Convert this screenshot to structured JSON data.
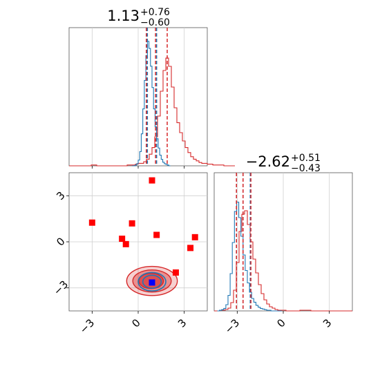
{
  "chart_data": {
    "type": "corner",
    "parameters": 2,
    "axis_limits": {
      "x1": [
        -4.5,
        4.5
      ],
      "x2": [
        -4.5,
        4.5
      ]
    },
    "ticks": {
      "values": [
        -3,
        0,
        3
      ],
      "labels": [
        "−3",
        "0",
        "3"
      ]
    },
    "grid": true,
    "series": [
      {
        "color": "#1f77b4",
        "role": "narrow posterior"
      },
      {
        "color": "#d62728",
        "role": "broad posterior"
      }
    ],
    "panels": [
      {
        "id": "hist-x1",
        "title": {
          "median": "1.13",
          "plus": "+0.76",
          "minus": "−0.60"
        },
        "quantile_lines": {
          "blue": [
            0.6,
            1.2
          ],
          "red": [
            0.53,
            1.13,
            1.89
          ]
        },
        "hist_blue": {
          "edges_start": -0.4,
          "bin_width": 0.1,
          "counts": [
            0,
            0,
            1,
            3,
            8,
            20,
            45,
            80,
            120,
            155,
            175,
            165,
            140,
            110,
            80,
            55,
            38,
            25,
            15,
            9,
            5,
            3,
            2,
            1,
            0
          ]
        },
        "hist_red": {
          "edges_start": -4.5,
          "bin_width": 0.18,
          "counts": [
            0,
            0,
            0,
            0,
            0,
            0,
            0,
            0,
            1,
            1,
            0,
            0,
            0,
            0,
            0,
            0,
            0,
            0,
            0,
            0,
            0,
            1,
            1,
            1,
            2,
            3,
            3,
            5,
            8,
            14,
            22,
            35,
            60,
            90,
            115,
            130,
            120,
            95,
            70,
            52,
            40,
            30,
            22,
            16,
            11,
            8,
            6,
            4,
            3,
            3,
            2,
            2,
            1,
            1,
            1,
            1,
            0,
            0,
            0,
            0
          ]
        }
      },
      {
        "id": "hist-x2",
        "title": {
          "median": "−2.62",
          "plus": "+0.51",
          "minus": "−0.43"
        },
        "quantile_lines": {
          "blue": [
            -3.05,
            -2.62,
            -2.15
          ],
          "red": [
            -3.05,
            -2.62,
            -2.11
          ]
        },
        "hist_blue": {
          "edges_start": -4.3,
          "bin_width": 0.14,
          "counts": [
            0,
            1,
            2,
            4,
            10,
            25,
            60,
            110,
            160,
            175,
            150,
            120,
            90,
            65,
            45,
            30,
            20,
            14,
            9,
            6,
            4,
            3,
            2,
            1,
            1,
            0,
            0,
            0,
            0,
            0
          ]
        },
        "hist_red": {
          "edges_start": -4.5,
          "bin_width": 0.18,
          "counts": [
            0,
            0,
            1,
            1,
            2,
            4,
            12,
            30,
            70,
            115,
            140,
            145,
            125,
            100,
            75,
            55,
            38,
            25,
            16,
            10,
            6,
            4,
            2,
            1,
            1,
            1,
            0,
            0,
            0,
            0,
            0,
            1,
            1,
            1,
            1,
            0,
            0,
            0,
            0,
            0,
            0,
            0,
            0,
            0,
            0,
            0,
            0,
            0,
            0,
            0
          ]
        }
      },
      {
        "id": "scatter-x1-x2",
        "contours_red": [
          {
            "cx": 0.9,
            "cy": -2.55,
            "rx": 1.65,
            "ry": 0.95
          },
          {
            "cx": 0.9,
            "cy": -2.55,
            "rx": 1.25,
            "ry": 0.72
          },
          {
            "cx": 0.85,
            "cy": -2.55,
            "rx": 0.8,
            "ry": 0.5
          }
        ],
        "contours_blue": [
          {
            "cx": 0.9,
            "cy": -2.6,
            "rx": 0.9,
            "ry": 0.6
          },
          {
            "cx": 0.9,
            "cy": -2.6,
            "rx": 0.6,
            "ry": 0.42
          }
        ],
        "red_markers": [
          {
            "x": 0.9,
            "y": 4.0
          },
          {
            "x": -3.0,
            "y": 1.25
          },
          {
            "x": -0.4,
            "y": 1.2
          },
          {
            "x": 1.2,
            "y": 0.45
          },
          {
            "x": -1.05,
            "y": 0.2
          },
          {
            "x": -0.8,
            "y": -0.15
          },
          {
            "x": 3.7,
            "y": 0.3
          },
          {
            "x": 3.4,
            "y": -0.4
          },
          {
            "x": 2.45,
            "y": -2.0
          }
        ],
        "blue_marker": {
          "x": 0.9,
          "y": -2.65
        }
      }
    ]
  }
}
